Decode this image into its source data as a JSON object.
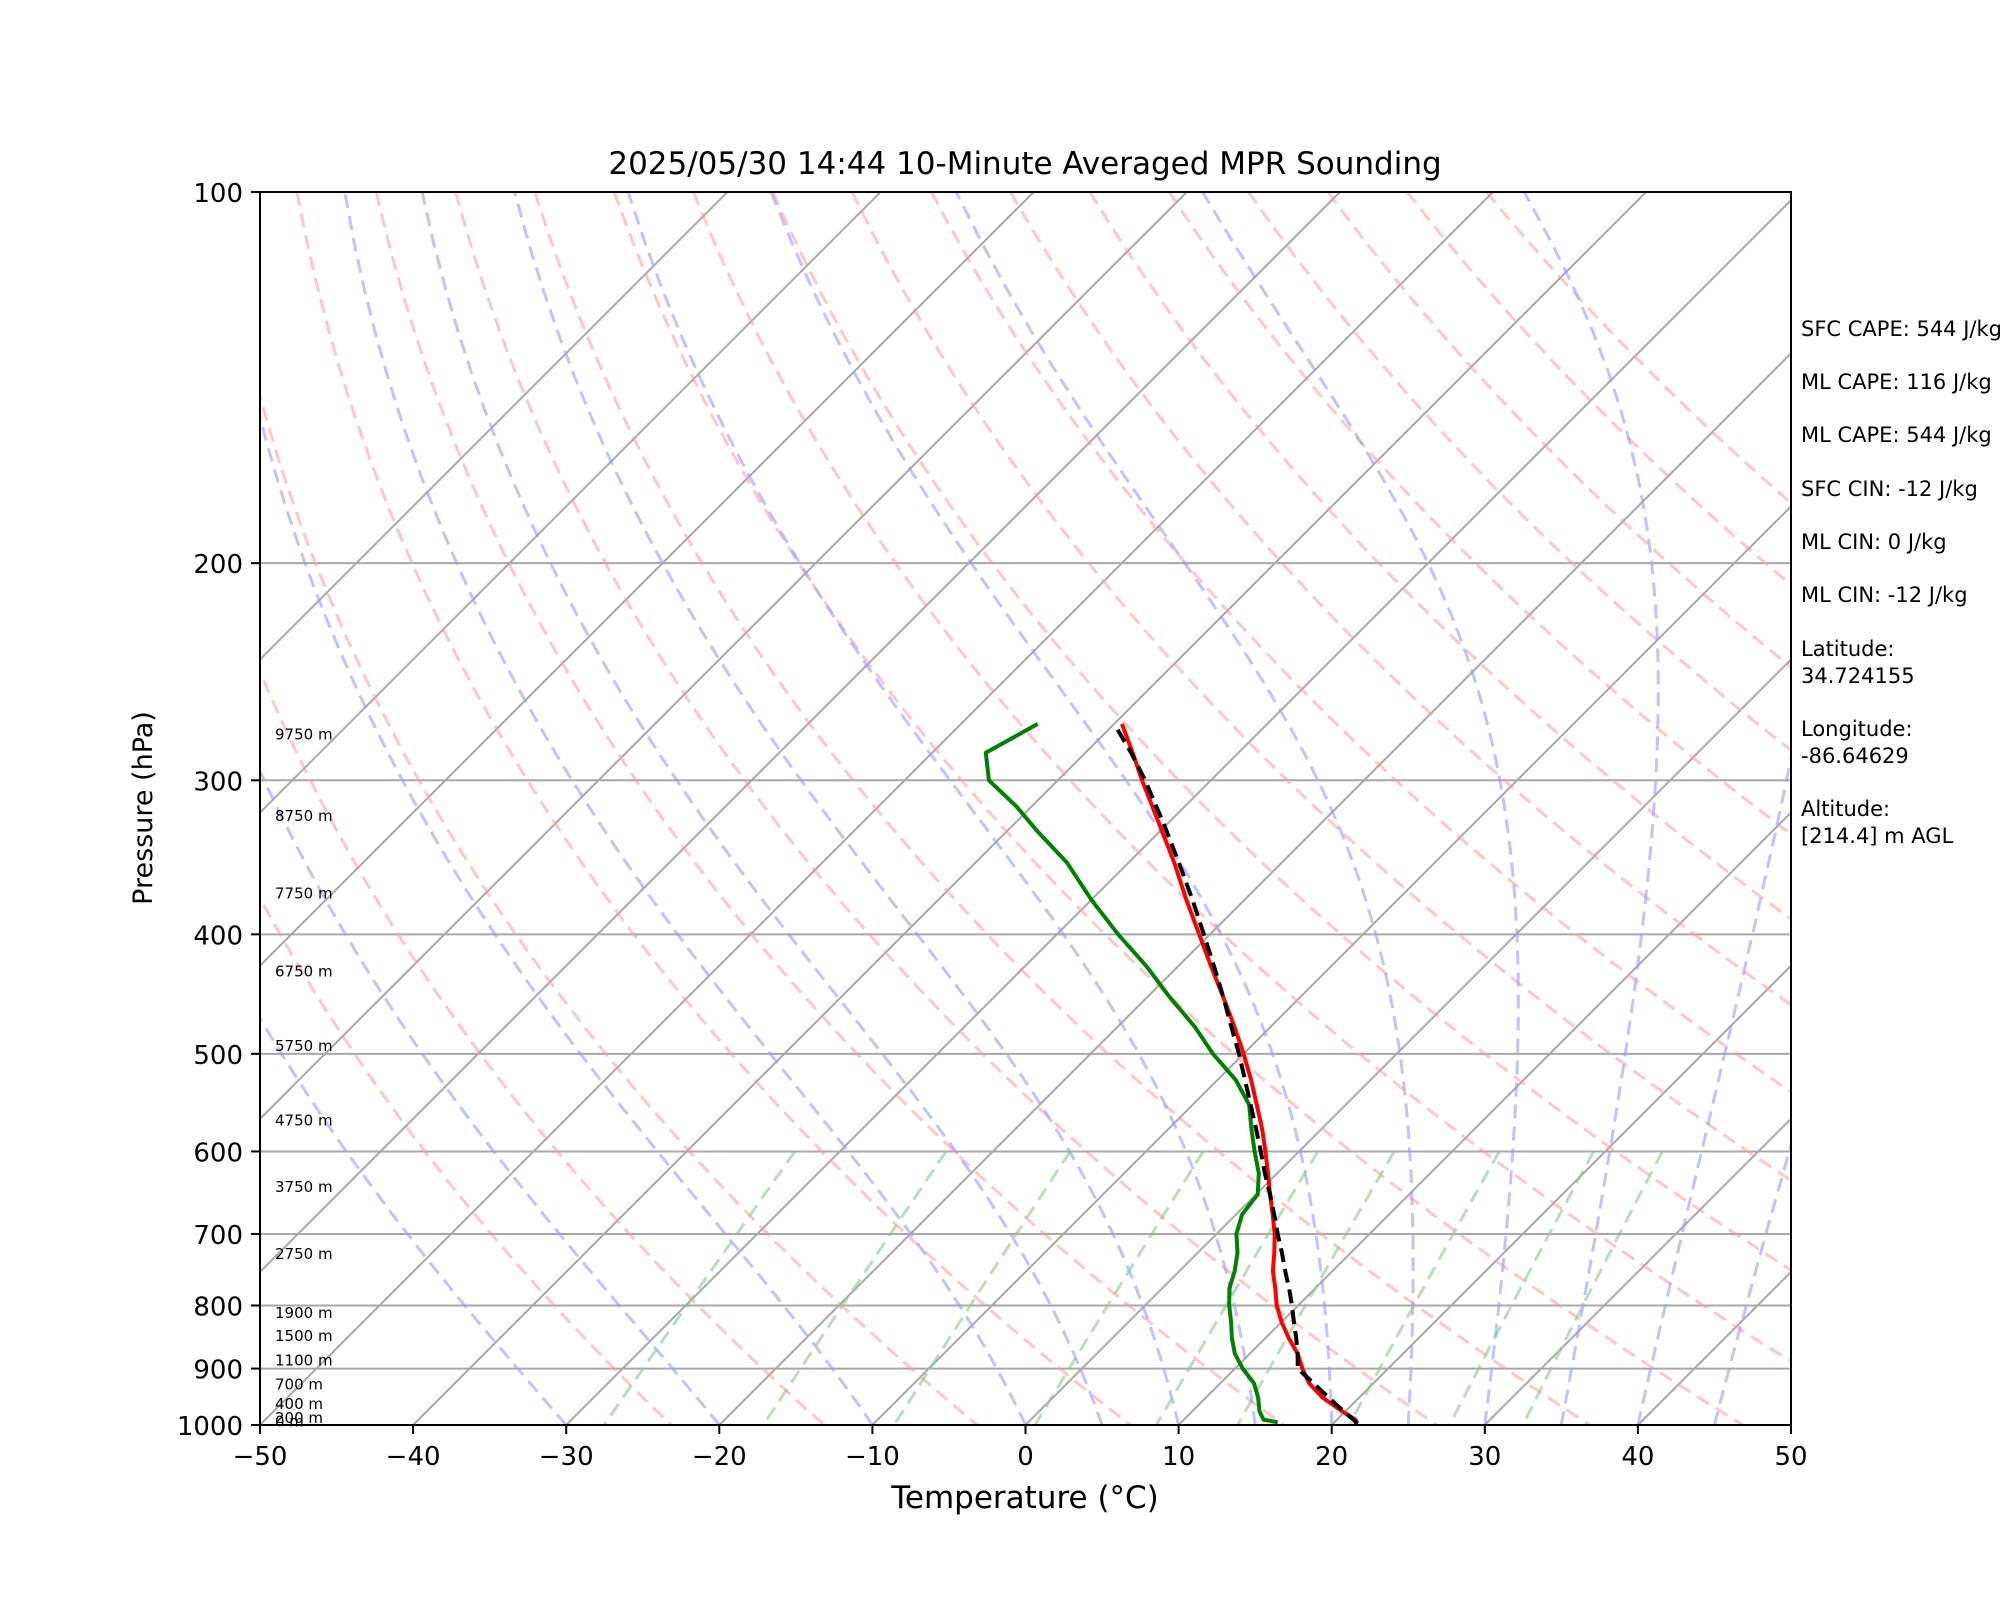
{
  "chart_data": {
    "type": "line",
    "title": "2025/05/30 14:44 10-Minute Averaged MPR Sounding",
    "xlabel": "Temperature (°C)",
    "ylabel": "Pressure (hPa)",
    "xlim": [
      -50,
      50
    ],
    "ylim": [
      1000,
      100
    ],
    "y_scale": "log",
    "x_ticks": [
      "−50",
      "−40",
      "−30",
      "−20",
      "−10",
      "0",
      "10",
      "20",
      "30",
      "40",
      "50"
    ],
    "y_ticks": [
      {
        "p": 100,
        "label": "100"
      },
      {
        "p": 200,
        "label": "200"
      },
      {
        "p": 300,
        "label": "300"
      },
      {
        "p": 400,
        "label": "400"
      },
      {
        "p": 500,
        "label": "500"
      },
      {
        "p": 600,
        "label": "600"
      },
      {
        "p": 700,
        "label": "700"
      },
      {
        "p": 800,
        "label": "800"
      },
      {
        "p": 900,
        "label": "900"
      },
      {
        "p": 1000,
        "label": "1000"
      }
    ],
    "height_labels": [
      {
        "p": 992,
        "label": "0 m"
      },
      {
        "p": 985,
        "label": "200 m"
      },
      {
        "p": 960,
        "label": "400 m"
      },
      {
        "p": 925,
        "label": "700 m"
      },
      {
        "p": 885,
        "label": "1100 m"
      },
      {
        "p": 845,
        "label": "1500 m"
      },
      {
        "p": 810,
        "label": "1900 m"
      },
      {
        "p": 725,
        "label": "2750 m"
      },
      {
        "p": 640,
        "label": "3750 m"
      },
      {
        "p": 565,
        "label": "4750 m"
      },
      {
        "p": 492,
        "label": "5750 m"
      },
      {
        "p": 428,
        "label": "6750 m"
      },
      {
        "p": 370,
        "label": "7750 m"
      },
      {
        "p": 320,
        "label": "8750 m"
      },
      {
        "p": 275,
        "label": "9750 m"
      }
    ],
    "isotherm_temps": [
      -100,
      -90,
      -80,
      -70,
      -60,
      -50,
      -40,
      -30,
      -20,
      -10,
      0,
      10,
      20,
      30,
      40,
      50
    ],
    "dry_adiabat_thetas": [
      250,
      260,
      270,
      280,
      290,
      300,
      310,
      320,
      330,
      340,
      350,
      360,
      370,
      380,
      390,
      400,
      410,
      420,
      430
    ],
    "moist_adiabat_temps": [
      -30,
      -20,
      -10,
      0,
      5,
      10,
      15,
      20,
      25,
      30,
      35,
      40,
      45
    ],
    "mixing_ratios": [
      0.4,
      1,
      2,
      4,
      7,
      10,
      16,
      24,
      32
    ],
    "grid": true,
    "series": [
      {
        "name": "",
        "style": "temperature",
        "color": "#ff0000",
        "points": [
          [
            1000,
            21.6
          ],
          [
            990,
            21.2
          ],
          [
            975,
            19.8
          ],
          [
            950,
            17.6
          ],
          [
            925,
            15.8
          ],
          [
            900,
            14.4
          ],
          [
            875,
            13.1
          ],
          [
            850,
            11.5
          ],
          [
            825,
            10.0
          ],
          [
            800,
            8.6
          ],
          [
            775,
            7.4
          ],
          [
            750,
            6.1
          ],
          [
            725,
            5.0
          ],
          [
            700,
            3.8
          ],
          [
            675,
            2.4
          ],
          [
            650,
            0.9
          ],
          [
            625,
            -0.6
          ],
          [
            600,
            -2.2
          ],
          [
            575,
            -3.9
          ],
          [
            550,
            -5.8
          ],
          [
            525,
            -7.8
          ],
          [
            500,
            -10.0
          ],
          [
            475,
            -12.4
          ],
          [
            450,
            -15.0
          ],
          [
            425,
            -17.8
          ],
          [
            400,
            -20.7
          ],
          [
            375,
            -23.8
          ],
          [
            350,
            -27.0
          ],
          [
            325,
            -30.6
          ],
          [
            300,
            -34.5
          ],
          [
            285,
            -36.9
          ],
          [
            270,
            -39.5
          ]
        ]
      },
      {
        "name": "",
        "style": "dewpoint",
        "color": "#008000",
        "points": [
          [
            995,
            16.3
          ],
          [
            990,
            15.2
          ],
          [
            975,
            14.4
          ],
          [
            950,
            13.4
          ],
          [
            925,
            12.2
          ],
          [
            900,
            10.5
          ],
          [
            875,
            9.0
          ],
          [
            850,
            7.8
          ],
          [
            825,
            6.7
          ],
          [
            800,
            5.5
          ],
          [
            775,
            4.4
          ],
          [
            750,
            3.6
          ],
          [
            725,
            2.6
          ],
          [
            700,
            1.3
          ],
          [
            675,
            0.4
          ],
          [
            650,
            0.1
          ],
          [
            625,
            -1.2
          ],
          [
            600,
            -2.9
          ],
          [
            575,
            -4.6
          ],
          [
            550,
            -6.3
          ],
          [
            525,
            -8.8
          ],
          [
            500,
            -12.0
          ],
          [
            475,
            -15.0
          ],
          [
            450,
            -18.5
          ],
          [
            425,
            -22.0
          ],
          [
            400,
            -26.0
          ],
          [
            375,
            -30.0
          ],
          [
            350,
            -34.0
          ],
          [
            330,
            -38.0
          ],
          [
            315,
            -41.0
          ],
          [
            300,
            -44.5
          ],
          [
            285,
            -46.5
          ],
          [
            270,
            -45.0
          ]
        ]
      },
      {
        "name": "",
        "style": "parcel",
        "color": "#000000",
        "points": [
          [
            997,
            21.6
          ],
          [
            975,
            19.9
          ],
          [
            950,
            18.0
          ],
          [
            925,
            16.1
          ],
          [
            900,
            14.1
          ],
          [
            875,
            13.1
          ],
          [
            850,
            12.0
          ],
          [
            825,
            10.8
          ],
          [
            800,
            9.6
          ],
          [
            775,
            8.3
          ],
          [
            750,
            6.9
          ],
          [
            725,
            5.5
          ],
          [
            700,
            4.0
          ],
          [
            675,
            2.5
          ],
          [
            650,
            0.9
          ],
          [
            625,
            -0.8
          ],
          [
            600,
            -2.5
          ],
          [
            575,
            -4.3
          ],
          [
            550,
            -6.2
          ],
          [
            525,
            -8.2
          ],
          [
            500,
            -10.3
          ],
          [
            475,
            -12.6
          ],
          [
            450,
            -15.0
          ],
          [
            425,
            -17.6
          ],
          [
            400,
            -20.4
          ],
          [
            375,
            -23.4
          ],
          [
            350,
            -26.7
          ],
          [
            325,
            -30.3
          ],
          [
            300,
            -34.3
          ],
          [
            285,
            -37.0
          ],
          [
            270,
            -40.0
          ]
        ]
      }
    ]
  },
  "stats": {
    "sfc_cape": "SFC CAPE: 544 J/kg",
    "ml_cape_1": "ML CAPE: 116 J/kg",
    "ml_cape_2": "ML CAPE: 544 J/kg",
    "sfc_cin": "SFC CIN: -12 J/kg",
    "ml_cin_1": "ML CIN: 0 J/kg",
    "ml_cin_2": "ML CIN: -12 J/kg",
    "latitude": "Latitude:\n34.724155",
    "longitude": "Longitude:\n-86.64629",
    "altitude": "Altitude:\n[214.4] m AGL"
  }
}
